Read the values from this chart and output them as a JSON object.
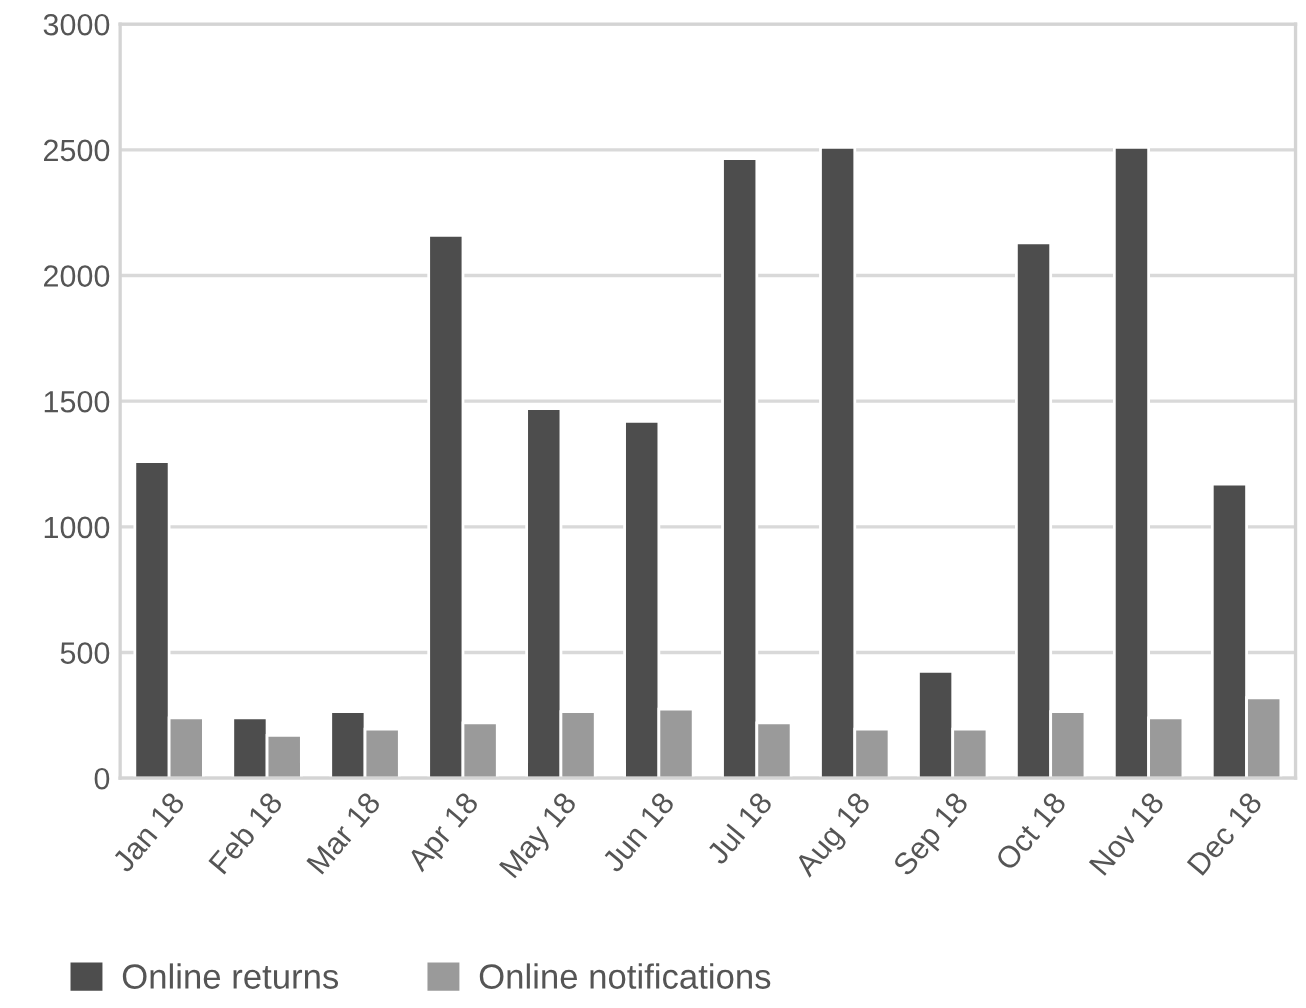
{
  "chart_data": {
    "type": "bar",
    "categories": [
      "Jan 18",
      "Feb 18",
      "Mar 18",
      "Apr 18",
      "May 18",
      "Jun 18",
      "Jul 18",
      "Aug 18",
      "Sep 18",
      "Oct 18",
      "Nov 18",
      "Dec 18"
    ],
    "series": [
      {
        "name": "Online returns",
        "color": "#4d4d4d",
        "values": [
          1260,
          240,
          265,
          2160,
          1470,
          1420,
          2465,
          2510,
          425,
          2130,
          2510,
          1170
        ]
      },
      {
        "name": "Online notifications",
        "color": "#9a9a9a",
        "values": [
          240,
          170,
          195,
          220,
          265,
          275,
          220,
          195,
          195,
          265,
          240,
          320
        ]
      }
    ],
    "ylim": [
      0,
      3000
    ],
    "yticks": [
      0,
      500,
      1000,
      1500,
      2000,
      2500,
      3000
    ],
    "grid": "y",
    "legend": "bottom left"
  }
}
